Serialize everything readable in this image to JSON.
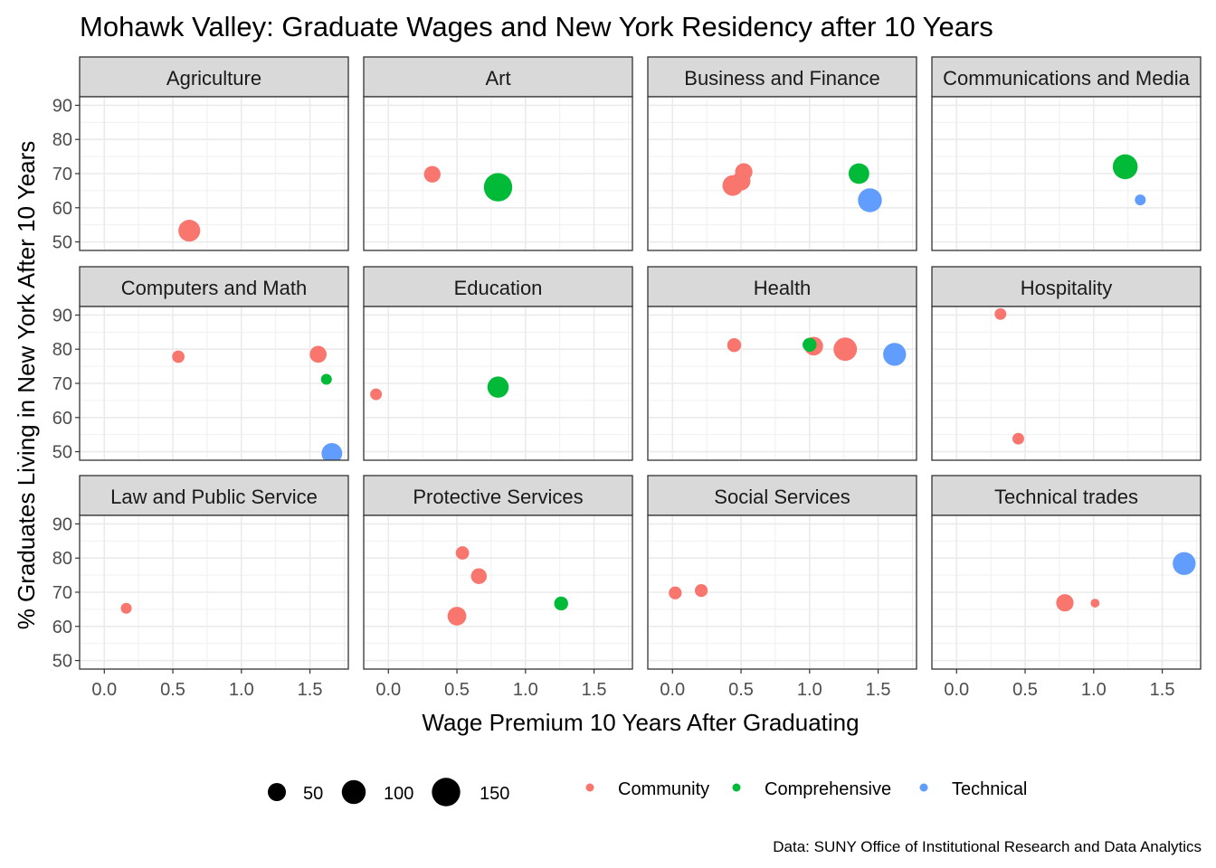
{
  "chart_data": {
    "type": "scatter",
    "title": "Mohawk Valley: Graduate Wages and New York Residency after 10 Years",
    "xlabel": "Wage Premium 10 Years After Graduating",
    "ylabel": "% Graduates Living in New York After 10 Years",
    "caption": "Data: SUNY Office of Institutional Research and Data Analytics",
    "xlim": [
      -0.18,
      1.78
    ],
    "ylim": [
      47.5,
      92.5
    ],
    "x_ticks": [
      0.0,
      0.5,
      1.0,
      1.5
    ],
    "x_tick_labels": [
      "0.0",
      "0.5",
      "1.0",
      "1.5"
    ],
    "y_ticks": [
      50,
      60,
      70,
      80,
      90
    ],
    "y_tick_labels": [
      "50",
      "60",
      "70",
      "80",
      "90"
    ],
    "grid": true,
    "legend_position": "bottom",
    "size_legend": {
      "values": [
        50,
        100,
        150
      ],
      "labels": [
        "50",
        "100",
        "150"
      ]
    },
    "color_legend": [
      {
        "label": "Community",
        "color": "#F8766D"
      },
      {
        "label": "Comprehensive",
        "color": "#00BA38"
      },
      {
        "label": "Technical",
        "color": "#619CFF"
      }
    ],
    "panels": [
      {
        "title": "Agriculture",
        "points": [
          {
            "x": 0.62,
            "y": 53.3,
            "size": 80,
            "type": "Community"
          }
        ]
      },
      {
        "title": "Art",
        "points": [
          {
            "x": 0.32,
            "y": 69.8,
            "size": 40,
            "type": "Community"
          },
          {
            "x": 0.8,
            "y": 66.0,
            "size": 150,
            "type": "Comprehensive"
          }
        ]
      },
      {
        "title": "Business and Finance",
        "points": [
          {
            "x": 0.44,
            "y": 66.5,
            "size": 70,
            "type": "Community"
          },
          {
            "x": 0.5,
            "y": 67.8,
            "size": 55,
            "type": "Community"
          },
          {
            "x": 0.52,
            "y": 70.5,
            "size": 45,
            "type": "Community"
          },
          {
            "x": 1.36,
            "y": 70.0,
            "size": 70,
            "type": "Comprehensive"
          },
          {
            "x": 1.44,
            "y": 62.2,
            "size": 100,
            "type": "Technical"
          }
        ]
      },
      {
        "title": "Communications and Media",
        "points": [
          {
            "x": 1.23,
            "y": 72.0,
            "size": 110,
            "type": "Comprehensive"
          },
          {
            "x": 1.34,
            "y": 62.3,
            "size": 12,
            "type": "Technical"
          }
        ]
      },
      {
        "title": "Computers and Math",
        "points": [
          {
            "x": 0.54,
            "y": 77.8,
            "size": 18,
            "type": "Community"
          },
          {
            "x": 1.56,
            "y": 78.5,
            "size": 42,
            "type": "Community"
          },
          {
            "x": 1.62,
            "y": 71.2,
            "size": 12,
            "type": "Comprehensive"
          },
          {
            "x": 1.66,
            "y": 49.5,
            "size": 70,
            "type": "Technical"
          }
        ]
      },
      {
        "title": "Education",
        "points": [
          {
            "x": -0.09,
            "y": 66.8,
            "size": 15,
            "type": "Community"
          },
          {
            "x": 0.8,
            "y": 68.9,
            "size": 75,
            "type": "Comprehensive"
          }
        ]
      },
      {
        "title": "Health",
        "points": [
          {
            "x": 0.45,
            "y": 81.2,
            "size": 25,
            "type": "Community"
          },
          {
            "x": 1.03,
            "y": 80.9,
            "size": 55,
            "type": "Community"
          },
          {
            "x": 1.26,
            "y": 80.0,
            "size": 95,
            "type": "Community"
          },
          {
            "x": 1.0,
            "y": 81.3,
            "size": 25,
            "type": "Comprehensive"
          },
          {
            "x": 1.62,
            "y": 78.5,
            "size": 90,
            "type": "Technical"
          }
        ]
      },
      {
        "title": "Hospitality",
        "points": [
          {
            "x": 0.32,
            "y": 90.3,
            "size": 15,
            "type": "Community"
          },
          {
            "x": 0.45,
            "y": 53.8,
            "size": 15,
            "type": "Community"
          }
        ]
      },
      {
        "title": "Law and Public Service",
        "points": [
          {
            "x": 0.16,
            "y": 65.3,
            "size": 12,
            "type": "Community"
          }
        ]
      },
      {
        "title": "Protective Services",
        "points": [
          {
            "x": 0.54,
            "y": 81.5,
            "size": 22,
            "type": "Community"
          },
          {
            "x": 0.66,
            "y": 74.7,
            "size": 35,
            "type": "Community"
          },
          {
            "x": 0.5,
            "y": 63.0,
            "size": 55,
            "type": "Community"
          },
          {
            "x": 1.26,
            "y": 66.7,
            "size": 25,
            "type": "Comprehensive"
          }
        ]
      },
      {
        "title": "Social Services",
        "points": [
          {
            "x": 0.02,
            "y": 69.8,
            "size": 20,
            "type": "Community"
          },
          {
            "x": 0.21,
            "y": 70.5,
            "size": 20,
            "type": "Community"
          }
        ]
      },
      {
        "title": "Technical trades",
        "points": [
          {
            "x": 0.79,
            "y": 66.9,
            "size": 45,
            "type": "Community"
          },
          {
            "x": 1.01,
            "y": 66.8,
            "size": 6,
            "type": "Community"
          },
          {
            "x": 1.66,
            "y": 78.4,
            "size": 90,
            "type": "Technical"
          }
        ]
      }
    ]
  }
}
